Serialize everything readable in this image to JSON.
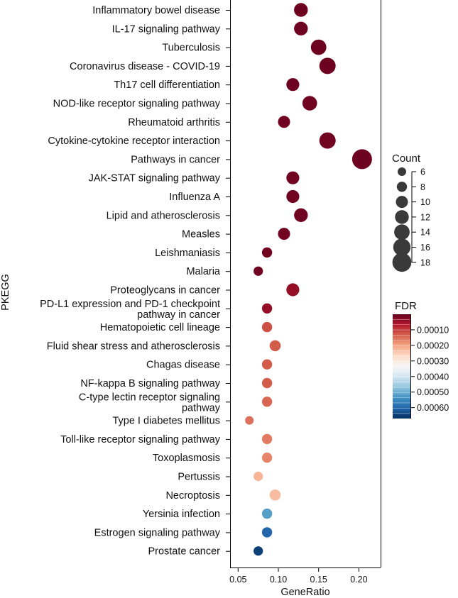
{
  "chart_data": {
    "type": "scatter",
    "subtype": "bubble",
    "xlabel": "GeneRatio",
    "ylabel": "PKEGG",
    "xlim": [
      0.04,
      0.227
    ],
    "xticks": [
      0.05,
      0.1,
      0.15,
      0.2
    ],
    "xtick_labels": [
      "0.05",
      "0.10",
      "0.15",
      "0.20"
    ],
    "grid": false,
    "terms": [
      {
        "label": "Inflammatory bowel disease",
        "x": 0.128,
        "count": 12,
        "fdr": 5e-06
      },
      {
        "label": "IL-17 signaling pathway",
        "x": 0.128,
        "count": 12,
        "fdr": 5e-06
      },
      {
        "label": "Tuberculosis",
        "x": 0.15,
        "count": 14,
        "fdr": 5e-06
      },
      {
        "label": "Coronavirus disease - COVID-19",
        "x": 0.161,
        "count": 15,
        "fdr": 5e-06
      },
      {
        "label": "Th17 cell differentiation",
        "x": 0.118,
        "count": 11,
        "fdr": 5e-06
      },
      {
        "label": "NOD-like receptor signaling pathway",
        "x": 0.139,
        "count": 13,
        "fdr": 8e-06
      },
      {
        "label": "Rheumatoid arthritis",
        "x": 0.107,
        "count": 10,
        "fdr": 8e-06
      },
      {
        "label": "Cytokine-cytokine receptor interaction",
        "x": 0.161,
        "count": 15,
        "fdr": 8e-06
      },
      {
        "label": "Pathways in cancer",
        "x": 0.204,
        "count": 19,
        "fdr": 5e-06
      },
      {
        "label": "JAK-STAT signaling pathway",
        "x": 0.118,
        "count": 11,
        "fdr": 8e-06
      },
      {
        "label": "Influenza A",
        "x": 0.118,
        "count": 11,
        "fdr": 8e-06
      },
      {
        "label": "Lipid and atherosclerosis",
        "x": 0.128,
        "count": 12,
        "fdr": 8e-06
      },
      {
        "label": "Measles",
        "x": 0.107,
        "count": 10,
        "fdr": 1e-05
      },
      {
        "label": "Leishmaniasis",
        "x": 0.086,
        "count": 8,
        "fdr": 1e-05
      },
      {
        "label": "Malaria",
        "x": 0.075,
        "count": 7,
        "fdr": 1e-05
      },
      {
        "label": "Proteoglycans in cancer",
        "x": 0.118,
        "count": 11,
        "fdr": 4e-05
      },
      {
        "label": "PD-L1 expression and PD-1 checkpoint pathway in cancer",
        "label_lines": [
          "PD-L1 expression and PD-1 checkpoint",
          "pathway in cancer"
        ],
        "x": 0.086,
        "count": 8,
        "fdr": 4e-05
      },
      {
        "label": "Hematopoietic cell lineage",
        "x": 0.086,
        "count": 8,
        "fdr": 0.00012
      },
      {
        "label": "Fluid shear stress and atherosclerosis",
        "x": 0.096,
        "count": 9,
        "fdr": 0.00013
      },
      {
        "label": "Chagas disease",
        "x": 0.086,
        "count": 8,
        "fdr": 0.00013
      },
      {
        "label": "NF-kappa B signaling pathway",
        "x": 0.086,
        "count": 8,
        "fdr": 0.00013
      },
      {
        "label": "C-type lectin receptor signaling pathway",
        "label_lines": [
          "C-type lectin receptor signaling",
          "pathway"
        ],
        "x": 0.086,
        "count": 8,
        "fdr": 0.00014
      },
      {
        "label": "Type I diabetes mellitus",
        "x": 0.064,
        "count": 6,
        "fdr": 0.00015
      },
      {
        "label": "Toll-like receptor signaling pathway",
        "x": 0.086,
        "count": 8,
        "fdr": 0.00016
      },
      {
        "label": "Toxoplasmosis",
        "x": 0.086,
        "count": 8,
        "fdr": 0.00017
      },
      {
        "label": "Pertussis",
        "x": 0.075,
        "count": 7,
        "fdr": 0.00022
      },
      {
        "label": "Necroptosis",
        "x": 0.096,
        "count": 9,
        "fdr": 0.00023
      },
      {
        "label": "Yersinia infection",
        "x": 0.086,
        "count": 8,
        "fdr": 0.00052
      },
      {
        "label": "Estrogen signaling pathway",
        "x": 0.086,
        "count": 8,
        "fdr": 0.0006
      },
      {
        "label": "Prostate cancer",
        "x": 0.075,
        "count": 7,
        "fdr": 0.00065
      }
    ],
    "size_legend": {
      "title": "Count",
      "values": [
        6,
        8,
        10,
        12,
        14,
        16,
        18
      ],
      "labels": [
        "6",
        "8",
        "10",
        "12",
        "14",
        "16",
        "18"
      ],
      "count_range": [
        6,
        19
      ]
    },
    "color_legend": {
      "title": "FDR",
      "range": [
        0.0,
        0.00067
      ],
      "ticks": [
        0.0001,
        0.0002,
        0.0003,
        0.0004,
        0.0005,
        0.0006
      ],
      "tick_labels": [
        "0.00010",
        "0.00020",
        "0.00030",
        "0.00040",
        "0.00050",
        "0.00060"
      ],
      "color_stops": [
        "#67001f",
        "#b2182b",
        "#d6604d",
        "#f4a582",
        "#fddbc7",
        "#f7f7f7",
        "#d1e5f0",
        "#92c5de",
        "#4393c3",
        "#2166ac",
        "#053061"
      ]
    },
    "legend_position": "right"
  }
}
